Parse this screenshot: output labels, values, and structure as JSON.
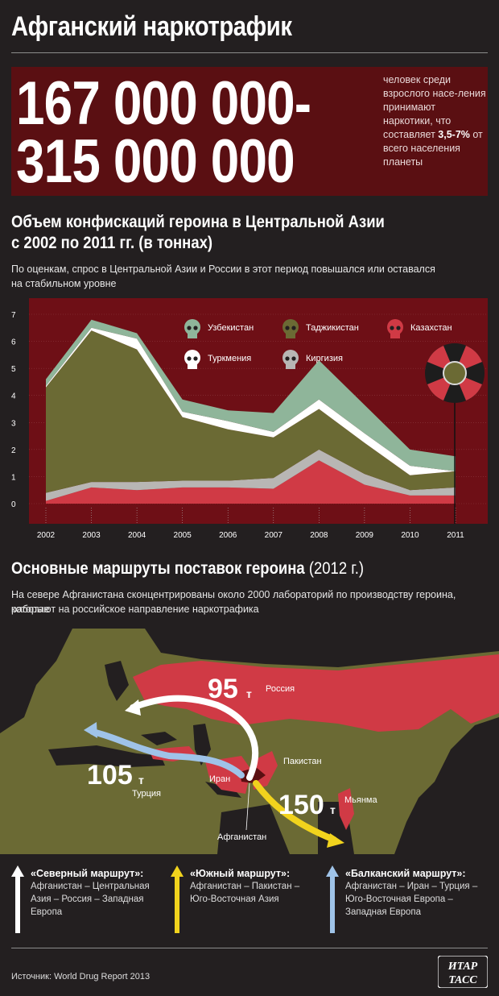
{
  "title": "Афганский наркотрафик",
  "stats": {
    "line1": "167 000 000-",
    "line2": "315 000 000",
    "desc_before": "человек среди взрослого насе-ления принимают наркотики, что составляет ",
    "desc_bold": "3,5-7%",
    "desc_after": " от всего населения планеты"
  },
  "chart_section": {
    "title_line1": "Объем конфискаций героина в Центральной Азии",
    "title_line2": "с 2002 по 2011 гг. (в тоннах)",
    "subtitle_line1": "По оценкам, спрос в Центральной Азии и России в этот период  повышался или оставался",
    "subtitle_line2": "на стабильном уровне"
  },
  "chart_data": {
    "type": "area",
    "stacked": true,
    "x": [
      "2002",
      "2003",
      "2004",
      "2005",
      "2006",
      "2007",
      "2008",
      "2009",
      "2010",
      "2011"
    ],
    "ylim": [
      0,
      7
    ],
    "yticks": [
      "0",
      "1",
      "2",
      "3",
      "4",
      "5",
      "6",
      "7"
    ],
    "series": [
      {
        "name": "Казахстан",
        "color": "#d03a45",
        "values": [
          0.1,
          0.6,
          0.5,
          0.6,
          0.6,
          0.55,
          1.6,
          0.7,
          0.3,
          0.3
        ]
      },
      {
        "name": "Киргизия",
        "color": "#b8b6b4",
        "values": [
          0.3,
          0.2,
          0.3,
          0.25,
          0.25,
          0.4,
          0.4,
          0.4,
          0.2,
          0.3
        ]
      },
      {
        "name": "Таджикистан",
        "color": "#6b6a34",
        "values": [
          3.9,
          5.6,
          4.9,
          2.35,
          1.9,
          1.5,
          1.5,
          1.15,
          0.55,
          0.6
        ]
      },
      {
        "name": "Туркмения",
        "color": "#ffffff",
        "values": [
          0.05,
          0.1,
          0.4,
          0.2,
          0.3,
          0.2,
          0.35,
          0.35,
          0.35,
          0.0
        ]
      },
      {
        "name": "Узбекистан",
        "color": "#8fb59a",
        "values": [
          0.25,
          0.3,
          0.2,
          0.45,
          0.4,
          0.7,
          1.45,
          1.05,
          0.6,
          0.55
        ]
      }
    ]
  },
  "routes_section": {
    "title": "Основные маршруты поставок героина",
    "title_light": " (2012 г.)",
    "subtitle_line1": "На севере Афганистана сконцентрированы около 2000 лабораторий по производству героина, которые",
    "subtitle_line2": "работают на российское направление наркотрафика"
  },
  "map": {
    "labels": {
      "russia": "Россия",
      "pakistan": "Пакистан",
      "iran": "Иран",
      "turkey": "Турция",
      "myanmar": "Мьянма",
      "afghanistan": "Афганистан"
    },
    "volumes": {
      "north": "95",
      "balkan": "105",
      "south": "150",
      "unit": "т"
    }
  },
  "routes": [
    {
      "name": "«Северный маршрут»:",
      "lines": [
        "Афганистан – Центральная",
        "Азия – Россия – Западная",
        "Европа"
      ],
      "color": "#ffffff"
    },
    {
      "name": "«Южный маршрут»:",
      "lines": [
        "Афганистан – Пакистан –",
        "Юго-Восточная Азия"
      ],
      "color": "#f1d31d"
    },
    {
      "name": "«Балканский маршрут»:",
      "lines": [
        "Афганистан – Иран – Турция –",
        "Юго-Восточная Европа –",
        "Западная Европа"
      ],
      "color": "#9fc3e8"
    }
  ],
  "source": "Источник: World Drug Report 2013",
  "logo": {
    "line1": "ИТАР",
    "line2": "ТАСС"
  },
  "colors": {
    "background": "#231f20",
    "stat_box": "#5a0f12",
    "chart_bg": "#6e0f16",
    "land": "#6b6a34",
    "russia": "#d03a45",
    "sea": "#231f20"
  }
}
